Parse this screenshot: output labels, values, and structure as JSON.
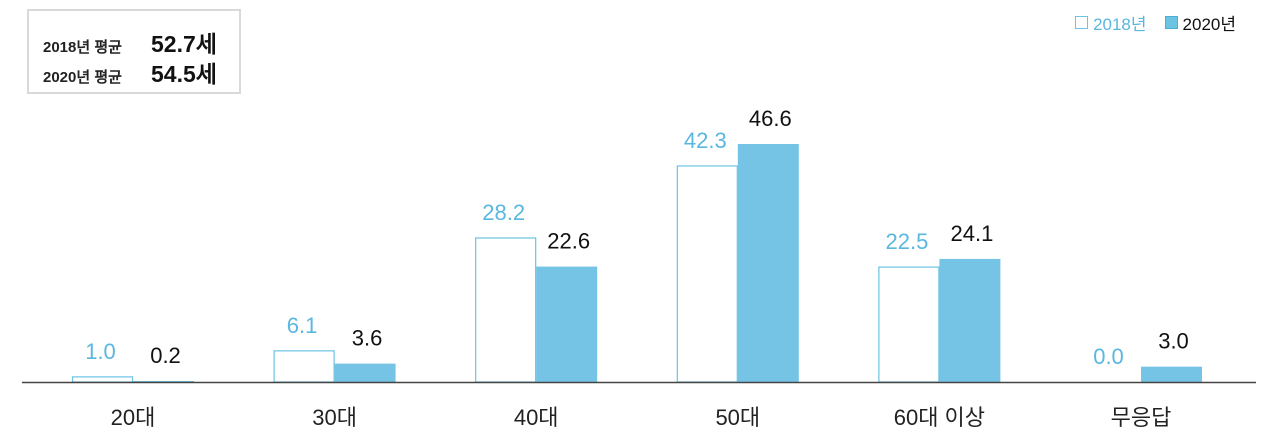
{
  "summary": {
    "row1_label": "2018년 평균",
    "row1_value": "52.7세",
    "row2_label": "2020년 평균",
    "row2_value": "54.5세"
  },
  "legend": {
    "item1": "2018년",
    "item2": "2020년"
  },
  "colors": {
    "series_2018_fill": "#ffffff",
    "series_2018_stroke": "#6cc3e2",
    "series_2018_label": "#5ab7df",
    "series_2020_fill": "#76c4e5",
    "series_2020_label": "#111111",
    "axis": "#444444"
  },
  "chart_data": {
    "type": "bar",
    "categories": [
      "20대",
      "30대",
      "40대",
      "50대",
      "60대 이상",
      "무응답"
    ],
    "series": [
      {
        "name": "2018년",
        "values": [
          1.0,
          6.1,
          28.2,
          42.3,
          22.5,
          0.0
        ]
      },
      {
        "name": "2020년",
        "values": [
          0.2,
          3.6,
          22.6,
          46.6,
          24.1,
          3.0
        ]
      }
    ],
    "value_labels": [
      [
        "1.0",
        "6.1",
        "28.2",
        "42.3",
        "22.5",
        "0.0"
      ],
      [
        "0.2",
        "3.6",
        "22.6",
        "46.6",
        "24.1",
        "3.0"
      ]
    ],
    "ylim": [
      0,
      46.6
    ],
    "grid": false,
    "legend_position": "top-right"
  }
}
